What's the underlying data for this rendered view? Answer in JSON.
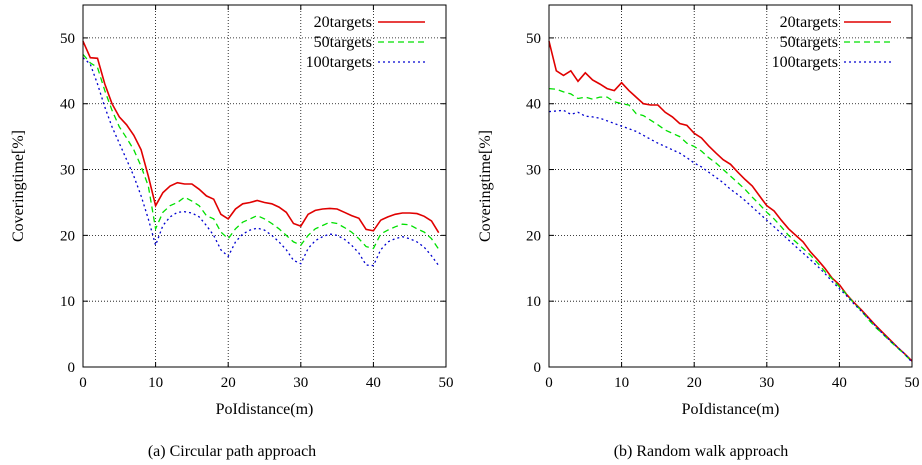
{
  "chart_data": [
    {
      "type": "line",
      "xlabel": "PoIdistance(m)",
      "ylabel": "Coveringtime[%]",
      "caption": "(a)  Circular path approach",
      "xlim": [
        0,
        50
      ],
      "ylim": [
        0,
        55
      ],
      "xticks": [
        0,
        10,
        20,
        30,
        40,
        50
      ],
      "yticks": [
        0,
        10,
        20,
        30,
        40,
        50
      ],
      "grid": true,
      "legend": "top-right",
      "x": [
        0,
        1,
        2,
        3,
        4,
        5,
        6,
        7,
        8,
        9,
        10,
        11,
        12,
        13,
        14,
        15,
        16,
        17,
        18,
        19,
        20,
        21,
        22,
        23,
        24,
        25,
        26,
        27,
        28,
        29,
        30,
        31,
        32,
        33,
        34,
        35,
        36,
        37,
        38,
        39,
        40,
        41,
        42,
        43,
        44,
        45,
        46,
        47,
        48,
        49
      ],
      "series": [
        {
          "name": "20targets",
          "color": "#e00000",
          "dash": "solid",
          "values": [
            49.5,
            47.0,
            46.9,
            43.0,
            40.0,
            38.0,
            36.8,
            35.2,
            33.0,
            29.0,
            24.5,
            26.5,
            27.5,
            28.0,
            27.8,
            27.8,
            27.0,
            26.0,
            25.5,
            23.2,
            22.5,
            24.0,
            24.8,
            25.0,
            25.3,
            25.0,
            24.8,
            24.3,
            23.5,
            21.8,
            21.4,
            23.2,
            23.8,
            24.0,
            24.1,
            24.0,
            23.5,
            23.0,
            22.6,
            20.9,
            20.7,
            22.3,
            22.8,
            23.2,
            23.4,
            23.4,
            23.3,
            22.9,
            22.2,
            20.4
          ]
        },
        {
          "name": "50targets",
          "color": "#00e000",
          "dash": "6,4",
          "values": [
            47.5,
            46.2,
            45.5,
            42.0,
            39.0,
            36.5,
            34.8,
            33.0,
            30.5,
            27.5,
            21.0,
            23.5,
            24.5,
            25.0,
            25.8,
            25.2,
            24.5,
            23.0,
            22.5,
            20.5,
            19.5,
            21.0,
            22.0,
            22.5,
            23.0,
            22.5,
            21.8,
            21.0,
            20.0,
            19.0,
            18.5,
            20.0,
            21.0,
            21.5,
            22.0,
            21.8,
            21.2,
            20.5,
            19.5,
            18.3,
            18.0,
            20.2,
            20.8,
            21.3,
            21.7,
            21.6,
            21.0,
            20.5,
            19.5,
            17.9
          ]
        },
        {
          "name": "100targets",
          "color": "#0000d0",
          "dash": "2,3",
          "values": [
            47.0,
            46.0,
            43.0,
            39.5,
            36.5,
            34.0,
            31.5,
            29.0,
            26.0,
            22.5,
            18.5,
            21.5,
            22.8,
            23.5,
            23.6,
            23.4,
            22.8,
            21.5,
            20.0,
            17.8,
            16.8,
            19.0,
            20.2,
            20.8,
            21.1,
            20.8,
            20.0,
            19.0,
            17.8,
            16.2,
            15.7,
            18.0,
            19.2,
            19.8,
            20.2,
            20.0,
            19.4,
            18.5,
            17.3,
            15.5,
            15.4,
            17.8,
            19.0,
            19.5,
            19.8,
            19.5,
            19.0,
            18.2,
            16.9,
            15.4
          ]
        }
      ]
    },
    {
      "type": "line",
      "xlabel": "PoIdistance(m)",
      "ylabel": "Coveringtime[%]",
      "caption": "(b)  Random walk approach",
      "xlim": [
        0,
        50
      ],
      "ylim": [
        0,
        55
      ],
      "xticks": [
        0,
        10,
        20,
        30,
        40,
        50
      ],
      "yticks": [
        0,
        10,
        20,
        30,
        40,
        50
      ],
      "grid": true,
      "legend": "top-right",
      "x": [
        0,
        1,
        2,
        3,
        4,
        5,
        6,
        7,
        8,
        9,
        10,
        11,
        12,
        13,
        14,
        15,
        16,
        17,
        18,
        19,
        20,
        21,
        22,
        23,
        24,
        25,
        26,
        27,
        28,
        29,
        30,
        31,
        32,
        33,
        34,
        35,
        36,
        37,
        38,
        39,
        40,
        41,
        42,
        43,
        44,
        45,
        46,
        47,
        48,
        49,
        50
      ],
      "series": [
        {
          "name": "20targets",
          "color": "#e00000",
          "dash": "solid",
          "values": [
            49.5,
            45.0,
            44.3,
            45.0,
            43.4,
            44.7,
            43.6,
            43.0,
            42.3,
            42.0,
            43.2,
            42.0,
            41.0,
            40.0,
            39.8,
            39.8,
            38.7,
            38.0,
            37.0,
            36.7,
            35.5,
            34.8,
            33.6,
            32.5,
            31.5,
            30.8,
            29.6,
            28.5,
            27.5,
            26.0,
            24.5,
            23.7,
            22.3,
            21.0,
            20.0,
            19.0,
            17.5,
            16.3,
            15.0,
            13.5,
            12.5,
            11.0,
            9.8,
            8.7,
            7.5,
            6.3,
            5.2,
            4.1,
            3.0,
            2.0,
            0.9
          ]
        },
        {
          "name": "50targets",
          "color": "#00e000",
          "dash": "6,4",
          "values": [
            42.3,
            42.2,
            41.8,
            41.5,
            40.8,
            41.0,
            40.7,
            41.0,
            41.0,
            40.3,
            40.0,
            39.8,
            38.5,
            38.2,
            37.5,
            36.8,
            36.0,
            35.5,
            35.0,
            34.0,
            33.5,
            32.8,
            31.8,
            31.0,
            30.0,
            29.0,
            28.0,
            27.0,
            25.8,
            24.7,
            23.5,
            22.5,
            21.3,
            20.0,
            19.0,
            18.0,
            17.0,
            15.8,
            14.5,
            13.4,
            12.2,
            11.0,
            9.7,
            8.6,
            7.2,
            6.0,
            5.0,
            3.9,
            2.9,
            1.9,
            0.8
          ]
        },
        {
          "name": "100targets",
          "color": "#0000d0",
          "dash": "2,3",
          "values": [
            38.8,
            38.9,
            39.0,
            38.4,
            38.7,
            38.1,
            38.0,
            37.8,
            37.4,
            37.0,
            36.6,
            36.2,
            35.8,
            35.2,
            34.6,
            34.0,
            33.5,
            33.0,
            32.5,
            31.8,
            31.0,
            30.4,
            29.6,
            28.8,
            28.0,
            27.0,
            26.2,
            25.3,
            24.3,
            23.3,
            22.3,
            21.3,
            20.3,
            19.3,
            18.3,
            17.3,
            16.3,
            15.3,
            14.2,
            13.0,
            11.9,
            10.8,
            9.6,
            8.5,
            7.4,
            6.2,
            5.0,
            4.0,
            3.0,
            2.0,
            0.7
          ]
        }
      ]
    }
  ]
}
